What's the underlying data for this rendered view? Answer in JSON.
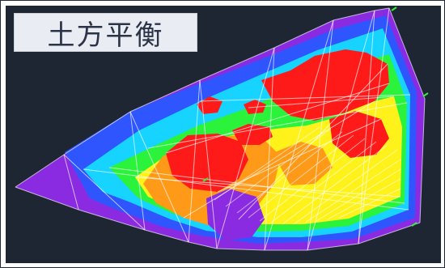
{
  "title": "土方平衡",
  "colors": {
    "background": "#1f2633",
    "title_bg": "#e9edf3",
    "title_text": "#2a3446",
    "mesh": "#ffffff",
    "purple": "#8a2be2",
    "blue": "#2f55ff",
    "cyan": "#17d3ff",
    "green": "#2bf23b",
    "yellow": "#fff21a",
    "orange": "#ff9a18",
    "red": "#ff1a1a"
  },
  "icons": [
    "mesh-icon"
  ]
}
